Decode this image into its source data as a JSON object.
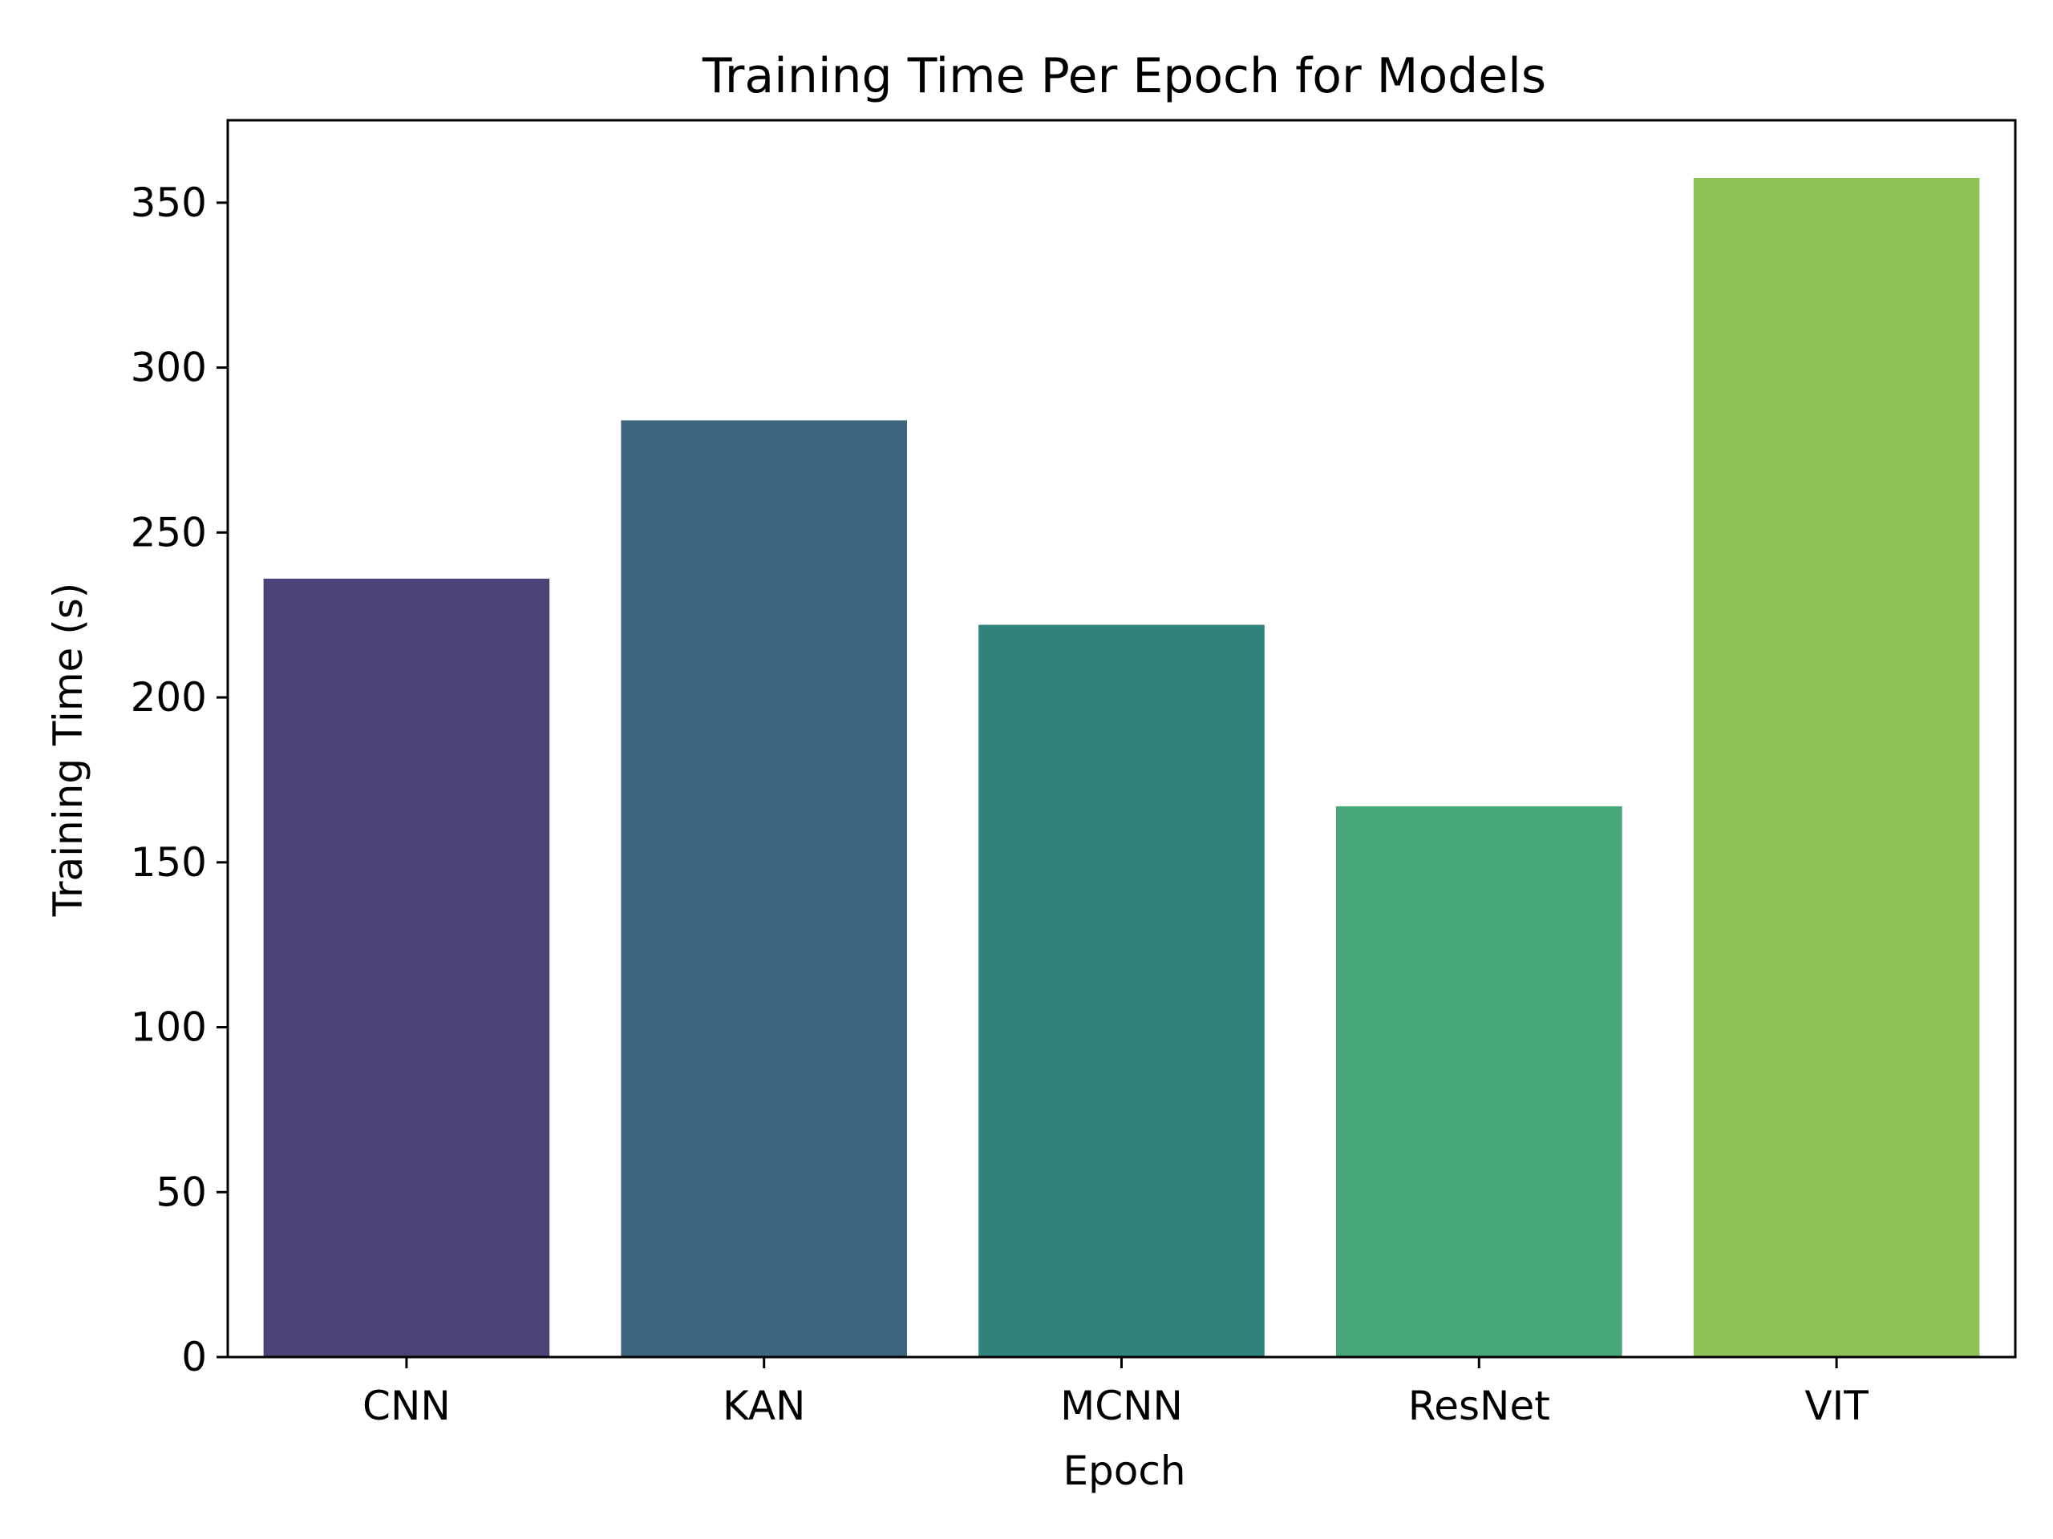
{
  "chart_data": {
    "type": "bar",
    "title": "Training Time Per Epoch for Models",
    "xlabel": "Epoch",
    "ylabel": "Training Time (s)",
    "categories": [
      "CNN",
      "KAN",
      "MCNN",
      "ResNet",
      "VIT"
    ],
    "values": [
      236,
      284,
      222,
      167,
      357.5
    ],
    "colors": [
      "#4a4378",
      "#3f6681",
      "#30837d",
      "#48a779",
      "#8ec357"
    ],
    "ylim": [
      0,
      375
    ],
    "yticks": [
      0,
      50,
      100,
      150,
      200,
      250,
      300,
      350
    ],
    "grid": false,
    "legend": "none"
  }
}
